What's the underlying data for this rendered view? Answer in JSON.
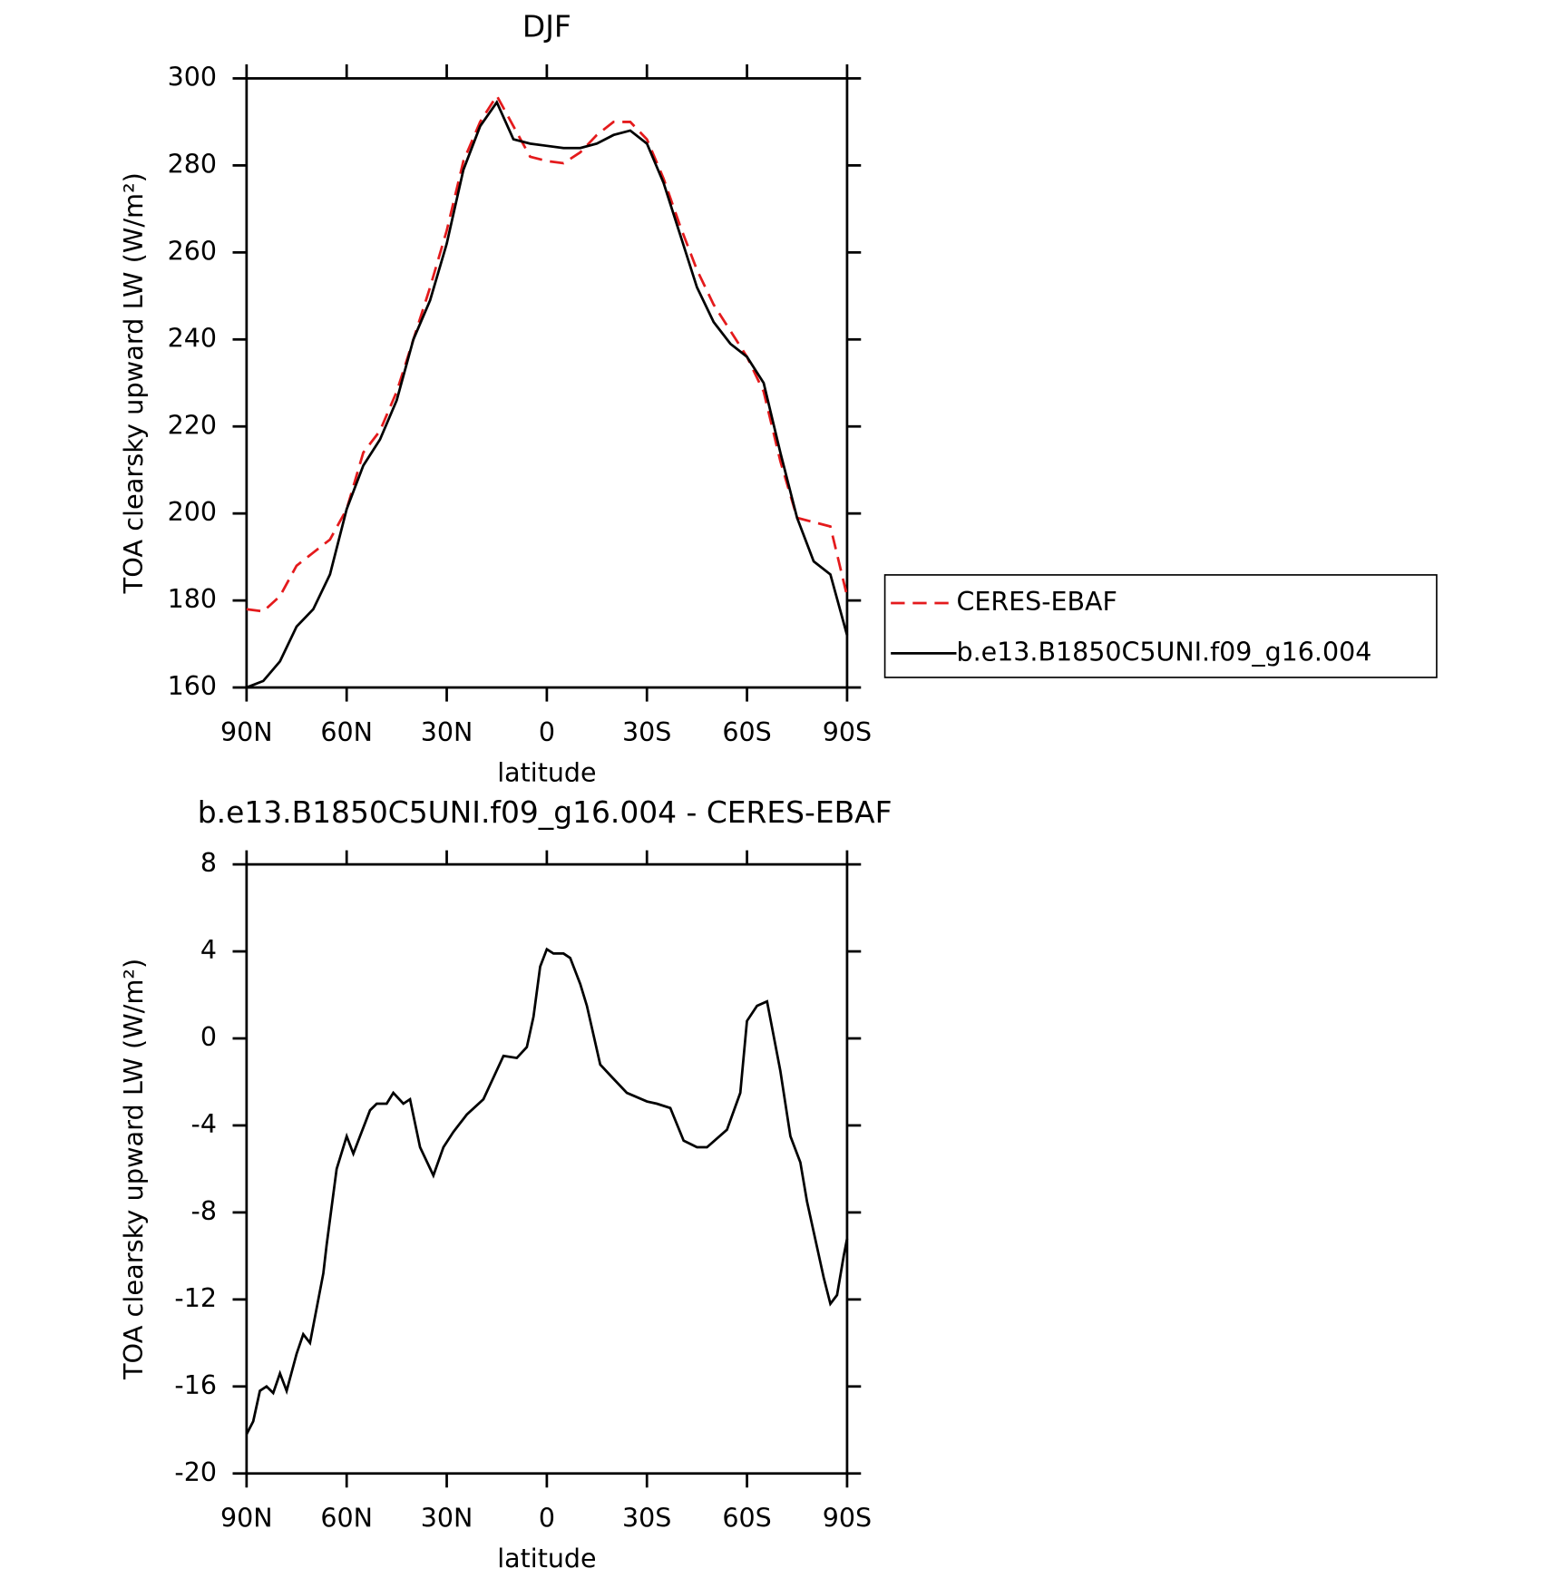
{
  "chart_data": [
    {
      "type": "line",
      "title": "DJF",
      "xlabel": "latitude",
      "ylabel": "TOA clearsky upward LW (W/m²)",
      "x": [
        90,
        85,
        80,
        75,
        70,
        65,
        60,
        55,
        50,
        45,
        40,
        35,
        30,
        25,
        20,
        15,
        10,
        5,
        0,
        -5,
        -10,
        -15,
        -20,
        -25,
        -30,
        -35,
        -40,
        -45,
        -50,
        -55,
        -60,
        -65,
        -70,
        -75,
        -80,
        -85,
        -90
      ],
      "series": [
        {
          "name": "CERES-EBAF",
          "color": "#e41a1c",
          "line_style": "dashed",
          "values": [
            178,
            177.5,
            181,
            188,
            191,
            194,
            201,
            214,
            219,
            228,
            240,
            252,
            265,
            281,
            290,
            296,
            289,
            282,
            281,
            280.5,
            283,
            287,
            290,
            290,
            286,
            277,
            266,
            256,
            248,
            242,
            236,
            228,
            212,
            199,
            198,
            197,
            181
          ]
        },
        {
          "name": "b.e13.B1850C5UNI.f09_g16.004",
          "color": "#000000",
          "line_style": "solid",
          "values": [
            160,
            161.5,
            166,
            174,
            178,
            186,
            201,
            211,
            217,
            226,
            240,
            249,
            262,
            279,
            289,
            294.5,
            286,
            285,
            284.5,
            284,
            284,
            285,
            287,
            288,
            285,
            276,
            264,
            252,
            244,
            239,
            236,
            230,
            214,
            199,
            189,
            186,
            172
          ]
        }
      ],
      "xlim": [
        90,
        -90
      ],
      "xticks": [
        {
          "value": 90,
          "label": "90N"
        },
        {
          "value": 60,
          "label": "60N"
        },
        {
          "value": 30,
          "label": "30N"
        },
        0,
        {
          "value": -30,
          "label": "30S"
        },
        {
          "value": -60,
          "label": "60S"
        },
        {
          "value": -90,
          "label": "90S"
        }
      ],
      "ylim": [
        160,
        300
      ],
      "yticks": [
        160,
        180,
        200,
        220,
        240,
        260,
        280,
        300
      ],
      "legend_position": "right"
    },
    {
      "type": "line",
      "title": "b.e13.B1850C5UNI.f09_g16.004 - CERES-EBAF",
      "xlabel": "latitude",
      "ylabel": "TOA clearsky upward LW (W/m²)",
      "x": [
        90,
        88,
        86,
        84,
        82,
        80,
        78,
        75,
        73,
        71,
        67,
        66,
        63,
        60,
        58,
        56,
        53,
        51,
        48,
        46,
        43,
        41,
        38,
        34,
        31,
        28,
        24,
        19,
        16,
        13,
        9,
        6,
        4,
        2,
        0,
        -2,
        -5,
        -7,
        -10,
        -12,
        -16,
        -19,
        -24,
        -30,
        -33,
        -37,
        -41,
        -45,
        -48,
        -54,
        -58,
        -60,
        -63,
        -66,
        -70,
        -73,
        -76,
        -78,
        -81,
        -83,
        -85,
        -87,
        -89,
        -90
      ],
      "series": [
        {
          "name": "b.e13.B1850C5UNI.f09_g16.004 - CERES-EBAF",
          "color": "#000000",
          "line_style": "solid",
          "values": [
            -18.2,
            -17.6,
            -16.2,
            -16,
            -16.3,
            -15.4,
            -16.2,
            -14.5,
            -13.6,
            -14,
            -10.8,
            -9.5,
            -6,
            -4.5,
            -5.3,
            -4.5,
            -3.3,
            -3,
            -3,
            -2.5,
            -3,
            -2.8,
            -5,
            -6.3,
            -5,
            -4.3,
            -3.5,
            -2.8,
            -1.8,
            -0.8,
            -0.9,
            -0.4,
            1,
            3.3,
            4.1,
            3.9,
            3.9,
            3.7,
            2.5,
            1.5,
            -1.2,
            -1.7,
            -2.5,
            -2.9,
            -3,
            -3.2,
            -4.7,
            -5,
            -5,
            -4.2,
            -2.5,
            0.8,
            1.5,
            1.7,
            -1.5,
            -4.5,
            -5.7,
            -7.5,
            -9.6,
            -11,
            -12.2,
            -11.8,
            -10,
            -9.2
          ]
        }
      ],
      "xlim": [
        90,
        -90
      ],
      "xticks": [
        {
          "value": 90,
          "label": "90N"
        },
        {
          "value": 60,
          "label": "60N"
        },
        {
          "value": 30,
          "label": "30N"
        },
        0,
        {
          "value": -30,
          "label": "30S"
        },
        {
          "value": -60,
          "label": "60S"
        },
        {
          "value": -90,
          "label": "90S"
        }
      ],
      "ylim": [
        -20,
        8
      ],
      "yticks": [
        -20,
        -16,
        -12,
        -8,
        -4,
        0,
        4,
        8
      ]
    }
  ]
}
